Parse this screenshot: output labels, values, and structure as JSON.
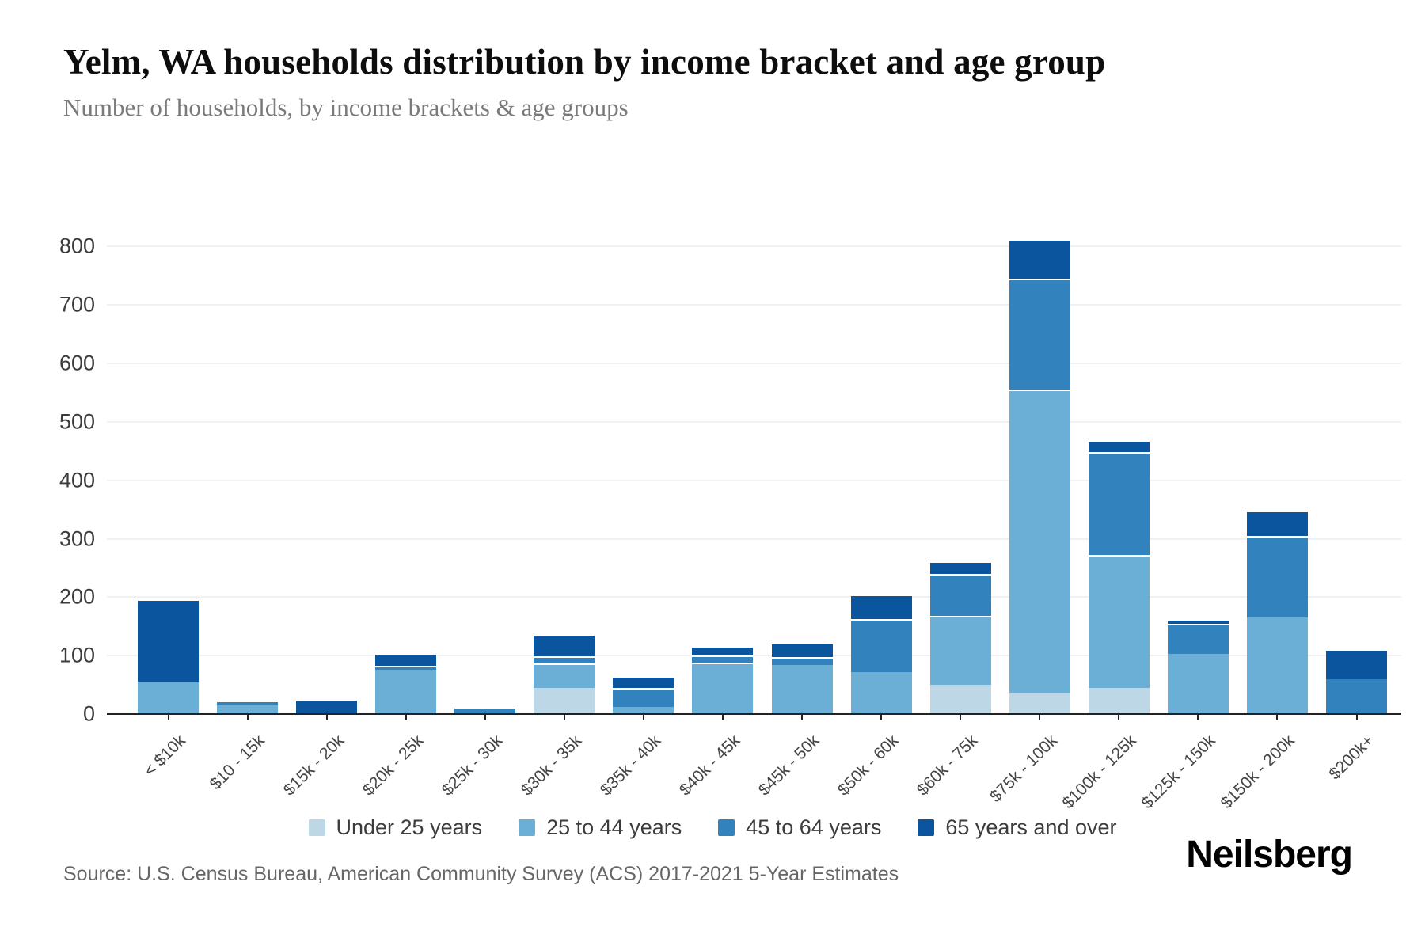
{
  "header": {
    "title": "Yelm, WA households distribution by income bracket and age group",
    "subtitle": "Number of households, by income brackets & age groups"
  },
  "footer": {
    "source": "Source: U.S. Census Bureau, American Community Survey (ACS) 2017-2021 5-Year Estimates",
    "brand": "Neilsberg"
  },
  "chart_data": {
    "type": "bar",
    "stacked": true,
    "title": "Yelm, WA households distribution by income bracket and age group",
    "subtitle": "Number of households, by income brackets & age groups",
    "xlabel": "",
    "ylabel": "Number of households",
    "ylim": [
      0,
      850
    ],
    "yticks": [
      0,
      100,
      200,
      300,
      400,
      500,
      600,
      700,
      800
    ],
    "grid": "horizontal",
    "legend_position": "bottom",
    "categories": [
      "< $10k",
      "$10 - 15k",
      "$15k - 20k",
      "$20k - 25k",
      "$25k - 30k",
      "$30k - 35k",
      "$35k - 40k",
      "$40k - 45k",
      "$45k - 50k",
      "$50k - 60k",
      "$60k - 75k",
      "$75k - 100k",
      "$100k - 125k",
      "$125k - 150k",
      "$150k - 200k",
      "$200k+"
    ],
    "series": [
      {
        "name": "Under 25 years",
        "color": "#bdd7e7",
        "values": [
          0,
          0,
          0,
          0,
          0,
          45,
          0,
          0,
          0,
          0,
          50,
          37,
          45,
          0,
          0,
          0
        ]
      },
      {
        "name": "25 to 44 years",
        "color": "#6baed6",
        "values": [
          56,
          16,
          0,
          76,
          0,
          42,
          12,
          86,
          84,
          72,
          118,
          518,
          227,
          103,
          165,
          0
        ]
      },
      {
        "name": "45 to 64 years",
        "color": "#3182bd",
        "values": [
          0,
          7,
          0,
          7,
          9,
          12,
          33,
          14,
          13,
          90,
          72,
          190,
          176,
          52,
          140,
          59
        ]
      },
      {
        "name": "65 years and over",
        "color": "#0b559f",
        "values": [
          141,
          0,
          23,
          21,
          0,
          38,
          20,
          17,
          25,
          43,
          22,
          68,
          20,
          8,
          43,
          52
        ]
      }
    ],
    "totals": [
      197,
      23,
      23,
      104,
      9,
      137,
      65,
      117,
      122,
      205,
      262,
      813,
      468,
      163,
      348,
      111
    ]
  }
}
